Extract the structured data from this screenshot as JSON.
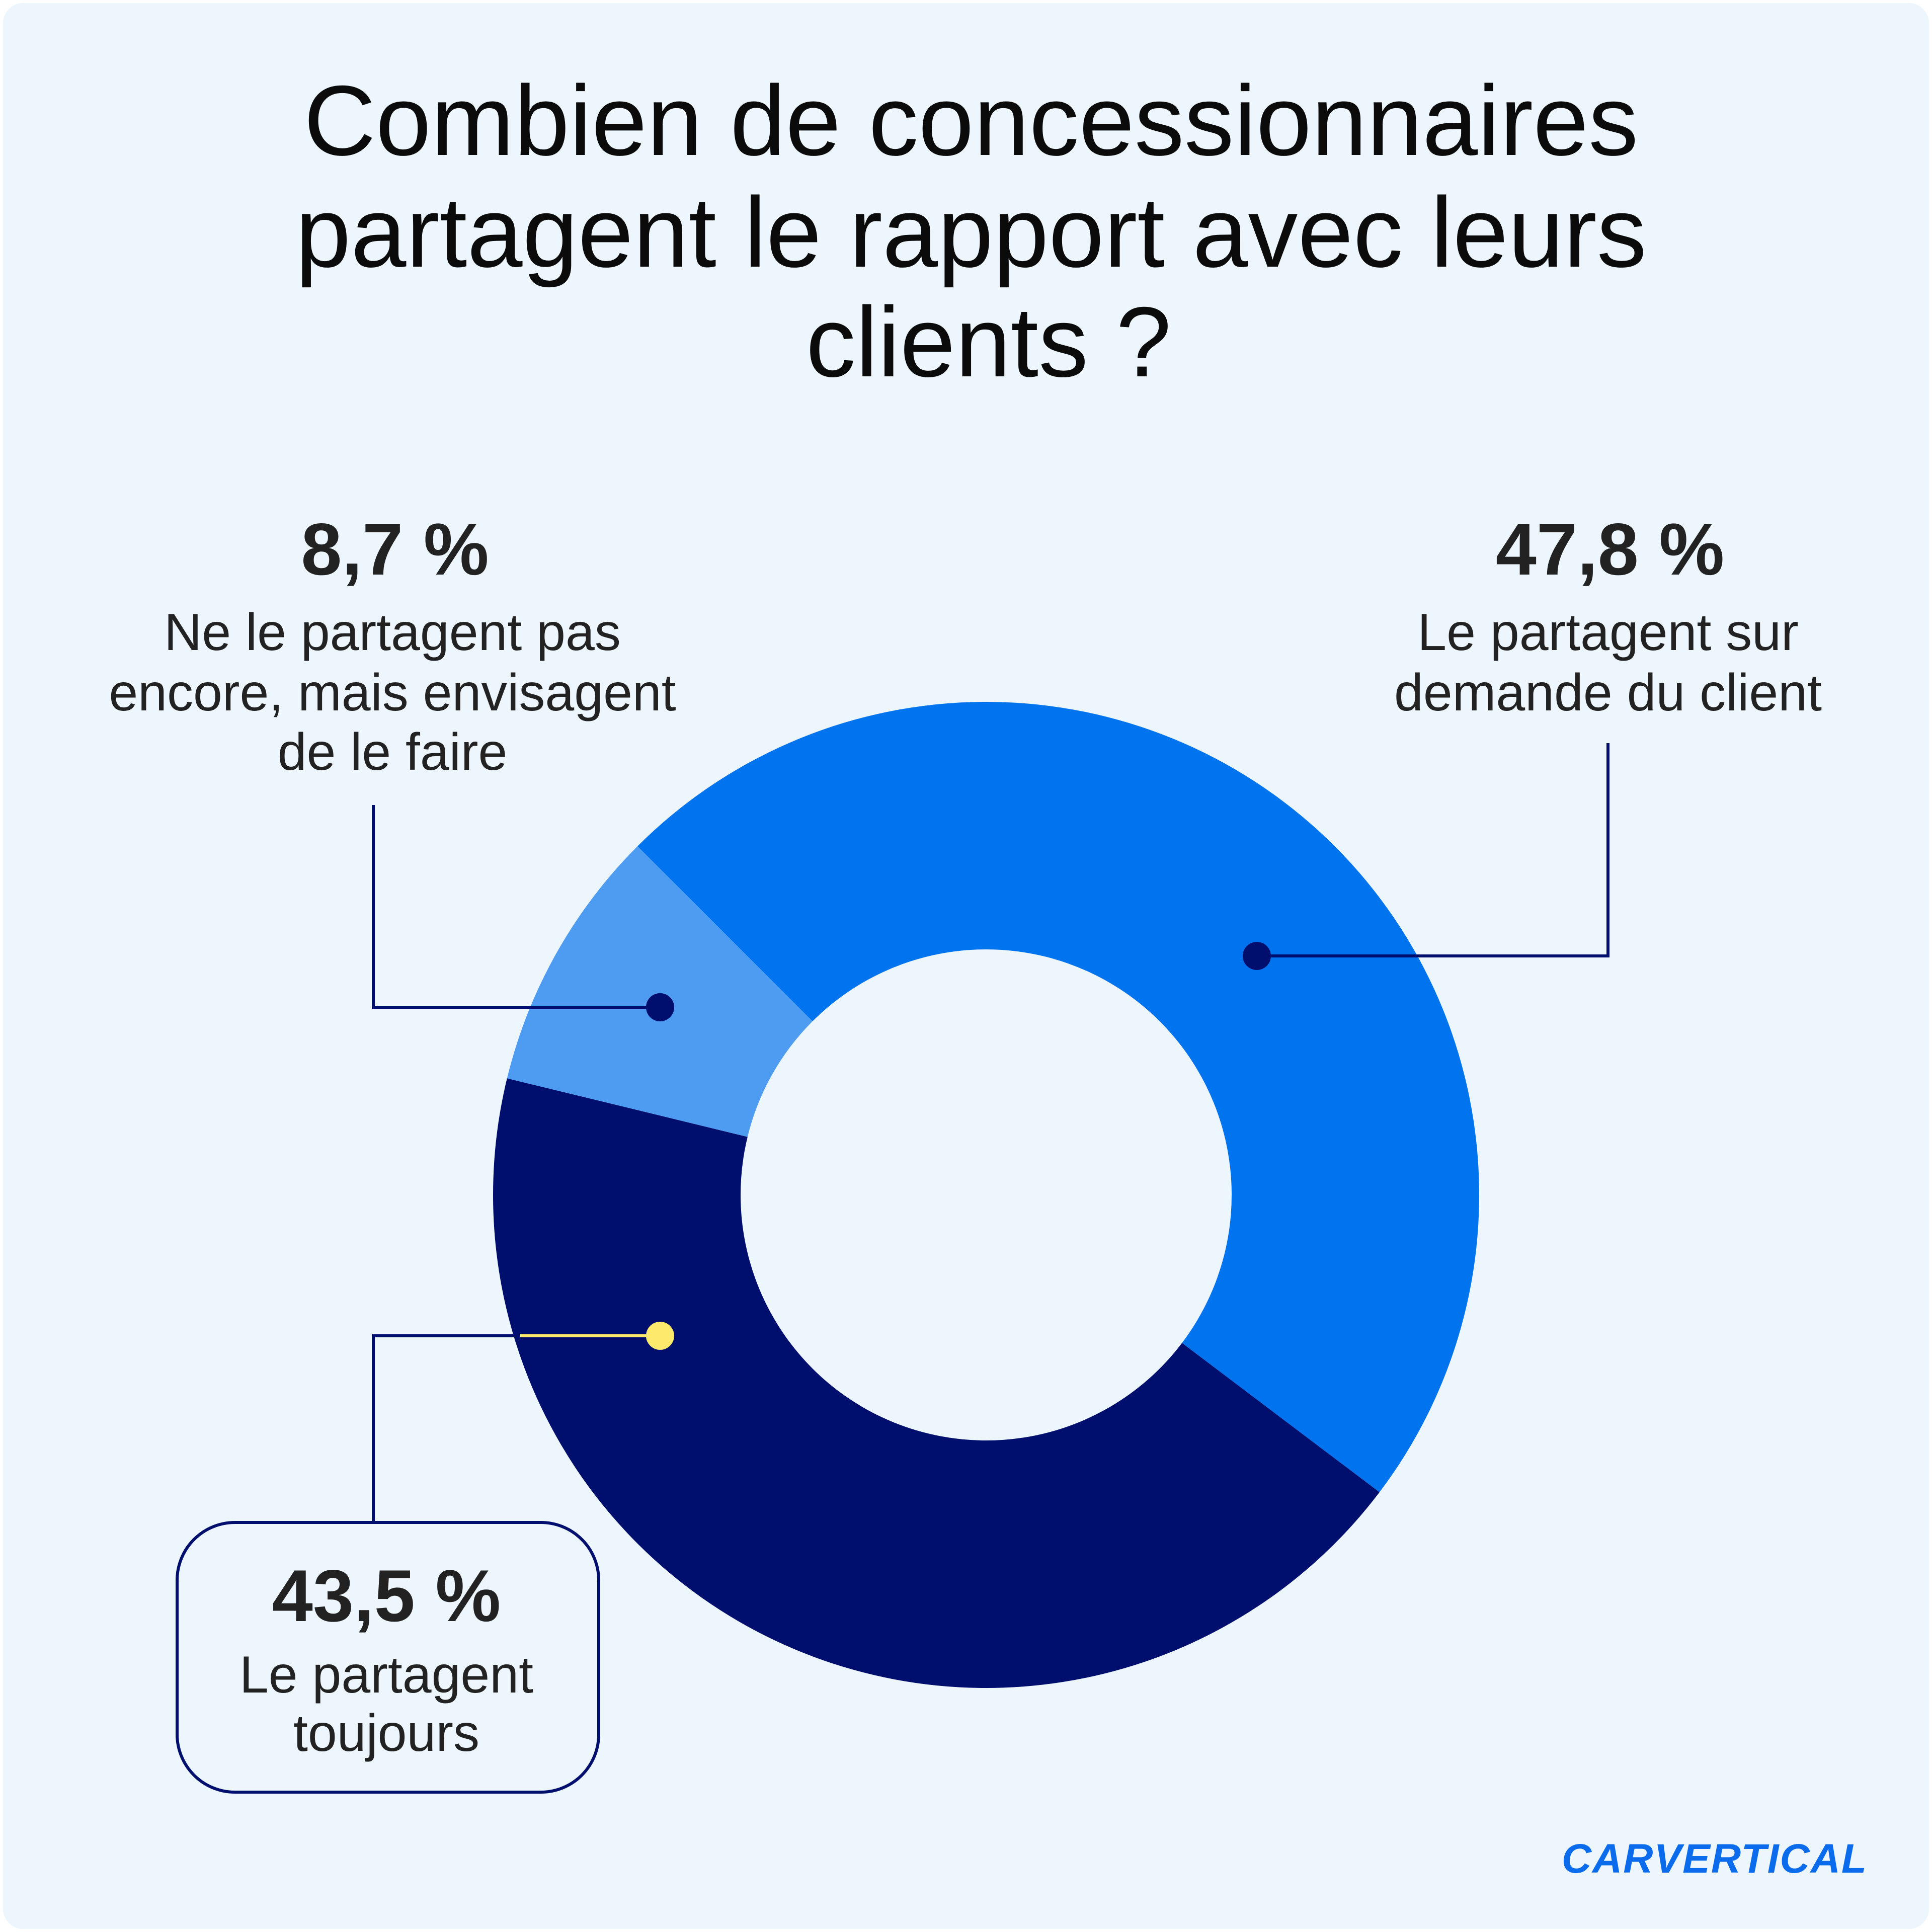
{
  "chart_data": {
    "type": "pie",
    "title_lines": [
      "Combien de concessionnaires",
      "partagent le rapport avec leurs",
      "clients ?"
    ],
    "slices": [
      {
        "value": 47.8,
        "value_label": "47,8 %",
        "label_lines": [
          "Le partagent sur",
          "demande du client"
        ],
        "color": "#0073ee"
      },
      {
        "value": 43.5,
        "value_label": "43,5 %",
        "label_lines": [
          "Le partagent",
          "toujours"
        ],
        "color": "#000f6e"
      },
      {
        "value": 8.7,
        "value_label": "8,7 %",
        "label_lines": [
          "Ne le partagent pas",
          "encore, mais envisagent",
          "de le faire"
        ],
        "color": "#4e9cf2"
      }
    ],
    "start_angle_deg": 225,
    "direction": "clockwise",
    "donut": true
  },
  "colors": {
    "background": "#eef6fd",
    "leader_line": "#000f6e",
    "leader_dot_dark": "#000f6e",
    "leader_dot_highlight": "#fde96c",
    "text": "#222222"
  },
  "brand": {
    "logo_text": "CARVERTICAL"
  }
}
